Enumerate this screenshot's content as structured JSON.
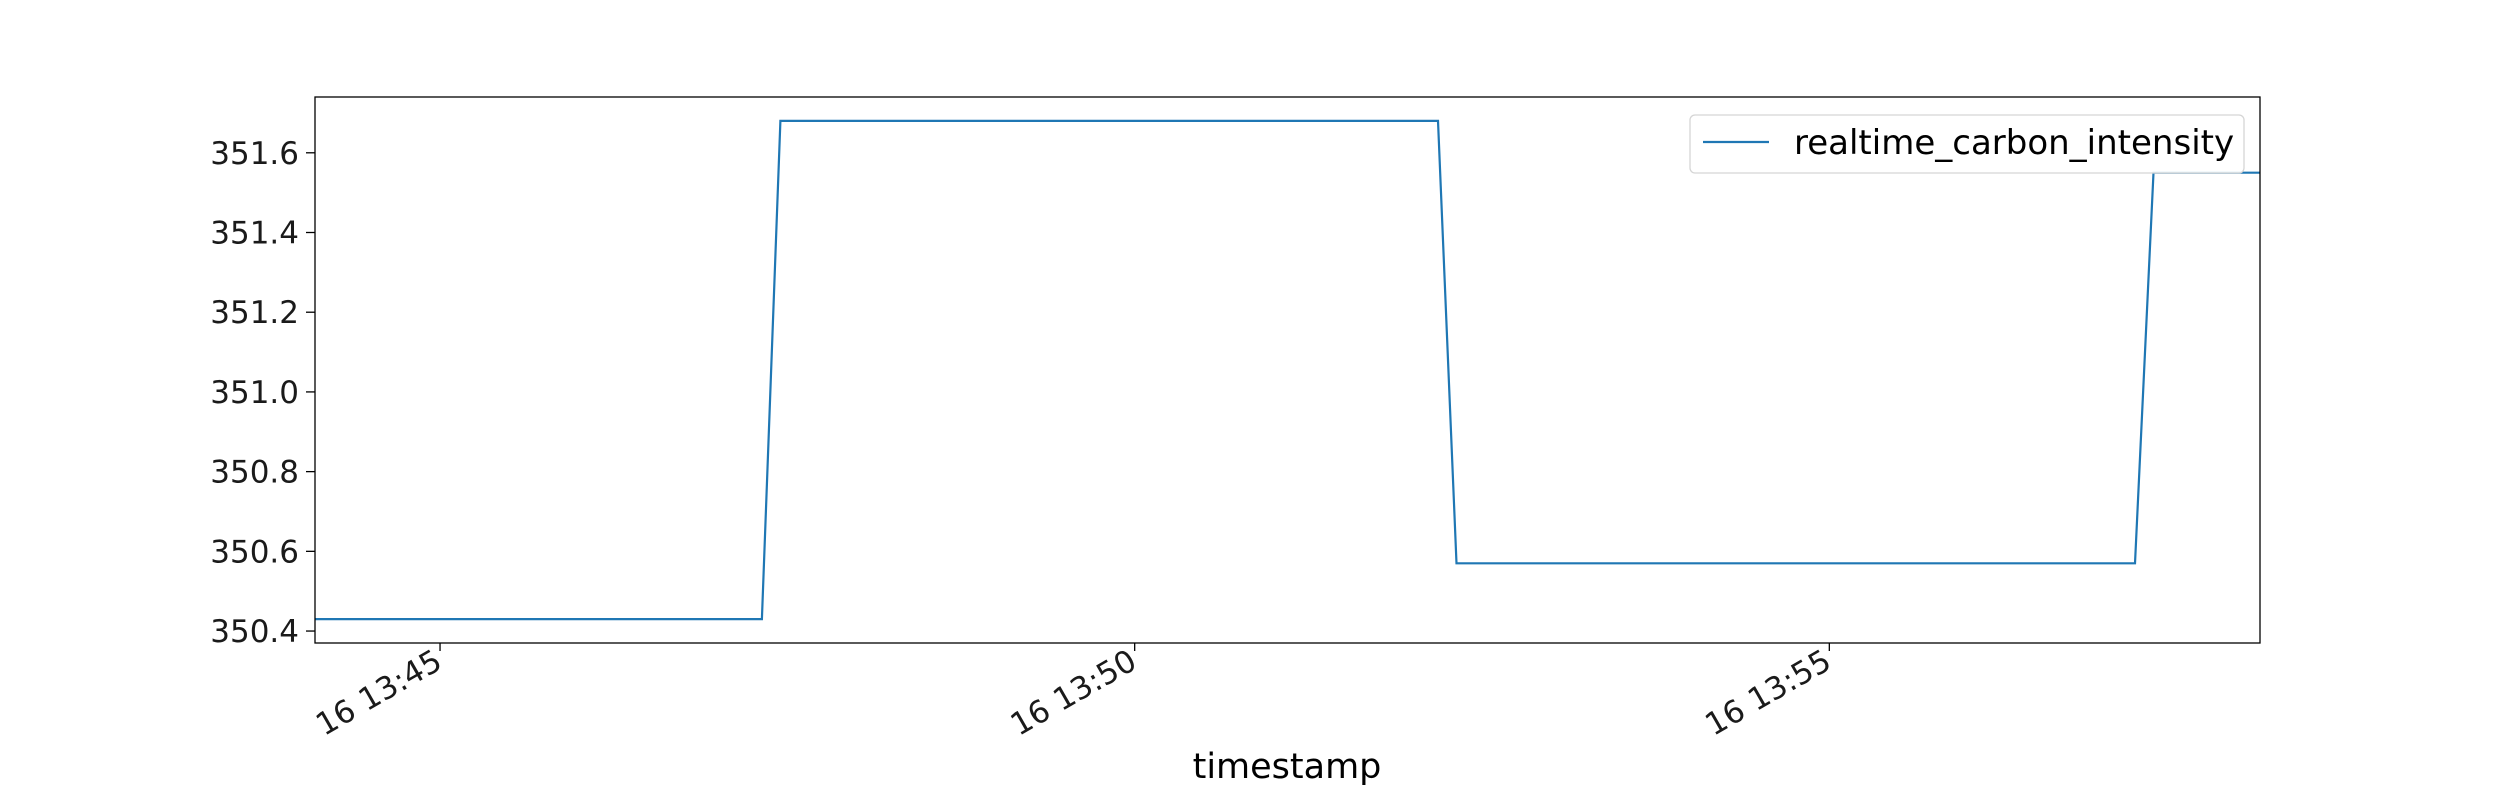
{
  "chart_data": {
    "type": "line",
    "title": "",
    "xlabel": "timestamp",
    "ylabel": "",
    "x_ticks": [
      {
        "t": "13:45",
        "label": "16 13:45"
      },
      {
        "t": "13:50",
        "label": "16 13:50"
      },
      {
        "t": "13:55",
        "label": "16 13:55"
      }
    ],
    "y_ticks": [
      350.4,
      350.6,
      350.8,
      351.0,
      351.2,
      351.4,
      351.6
    ],
    "xlim": [
      "13:44:06",
      "13:58:06"
    ],
    "ylim": [
      350.37,
      351.74
    ],
    "grid": false,
    "legend": {
      "position": "top-right"
    },
    "series": [
      {
        "name": "realtime_carbon_intensity",
        "color": "#1f77b4",
        "points": [
          {
            "t": "13:44:06",
            "y": 350.43
          },
          {
            "t": "13:47:19",
            "y": 350.43
          },
          {
            "t": "13:47:27",
            "y": 351.68
          },
          {
            "t": "13:52:11",
            "y": 351.68
          },
          {
            "t": "13:52:19",
            "y": 350.57
          },
          {
            "t": "13:57:12",
            "y": 350.57
          },
          {
            "t": "13:57:20",
            "y": 351.55
          },
          {
            "t": "13:58:06",
            "y": 351.55
          }
        ]
      }
    ]
  }
}
